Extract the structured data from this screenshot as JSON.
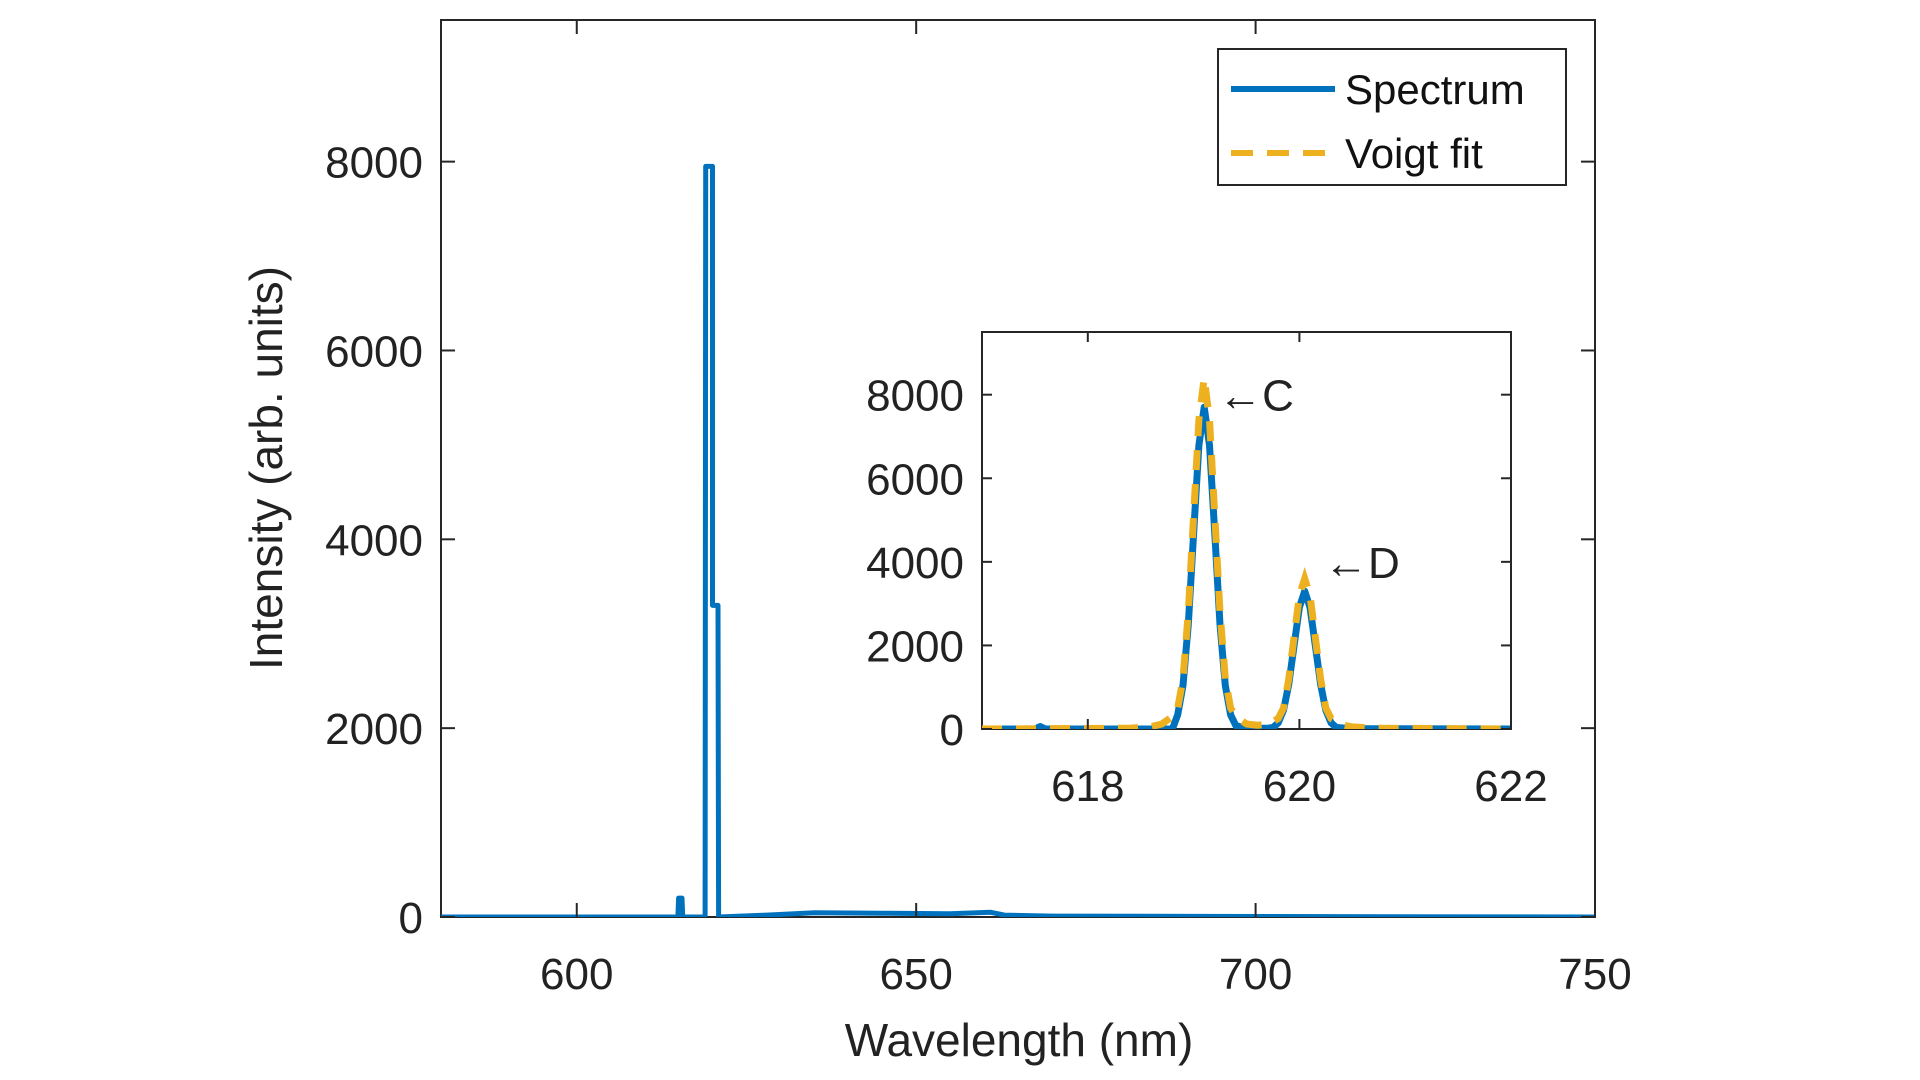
{
  "chart_data": {
    "type": "line",
    "colors": {
      "spectrum": "#0072BD",
      "fit": "#EDB120",
      "axes": "#262626"
    },
    "main": {
      "xlabel": "Wavelength (nm)",
      "ylabel": "Intensity (arb. units)",
      "xlim": [
        580,
        750
      ],
      "ylim": [
        0,
        9500
      ],
      "xticks": [
        600,
        650,
        700,
        750
      ],
      "yticks": [
        0,
        2000,
        4000,
        6000,
        8000
      ],
      "grid": false,
      "legend_placement": "top-right",
      "legend": [
        {
          "label": "Spectrum",
          "style": "solid"
        },
        {
          "label": "Voigt fit",
          "style": "dashed"
        }
      ],
      "spectrum": [
        [
          580,
          0
        ],
        [
          614.9,
          0
        ],
        [
          615.0,
          200
        ],
        [
          615.5,
          200
        ],
        [
          615.6,
          0
        ],
        [
          618.9,
          0
        ],
        [
          619.0,
          7950
        ],
        [
          620.0,
          7950
        ],
        [
          620.0,
          3300
        ],
        [
          620.8,
          3300
        ],
        [
          620.9,
          0
        ],
        [
          628,
          20
        ],
        [
          635,
          45
        ],
        [
          645,
          40
        ],
        [
          655,
          35
        ],
        [
          661,
          50
        ],
        [
          663,
          20
        ],
        [
          670,
          10
        ],
        [
          700,
          5
        ],
        [
          750,
          0
        ]
      ]
    },
    "inset": {
      "xlim": [
        617,
        622
      ],
      "ylim": [
        0,
        9500
      ],
      "xticks": [
        618,
        620,
        622
      ],
      "yticks": [
        0,
        2000,
        4000,
        6000,
        8000
      ],
      "annotations": [
        {
          "text": "←C",
          "x": 619.1,
          "y": 8000
        },
        {
          "text": "←D",
          "x": 620.1,
          "y": 4000
        }
      ],
      "spectrum": [
        [
          617,
          0
        ],
        [
          617.5,
          0
        ],
        [
          617.55,
          60
        ],
        [
          617.6,
          0
        ],
        [
          618.8,
          0
        ],
        [
          618.85,
          340
        ],
        [
          618.9,
          1042
        ],
        [
          618.95,
          2500
        ],
        [
          619.0,
          4670
        ],
        [
          619.05,
          6790
        ],
        [
          619.1,
          7700
        ],
        [
          619.15,
          6790
        ],
        [
          619.2,
          4670
        ],
        [
          619.25,
          2500
        ],
        [
          619.3,
          1042
        ],
        [
          619.35,
          340
        ],
        [
          619.4,
          80
        ],
        [
          619.5,
          20
        ],
        [
          619.7,
          20
        ],
        [
          619.75,
          37
        ],
        [
          619.8,
          145
        ],
        [
          619.85,
          447
        ],
        [
          619.9,
          1072
        ],
        [
          619.95,
          2000
        ],
        [
          620.0,
          2910
        ],
        [
          620.05,
          3300
        ],
        [
          620.1,
          2910
        ],
        [
          620.15,
          2000
        ],
        [
          620.2,
          1072
        ],
        [
          620.25,
          447
        ],
        [
          620.3,
          145
        ],
        [
          620.35,
          37
        ],
        [
          620.5,
          10
        ],
        [
          622,
          0
        ]
      ],
      "fit": [
        [
          617,
          0
        ],
        [
          618.4,
          20
        ],
        [
          618.6,
          60
        ],
        [
          618.7,
          120
        ],
        [
          618.8,
          300
        ],
        [
          618.85,
          500
        ],
        [
          618.9,
          1200
        ],
        [
          618.95,
          2800
        ],
        [
          619.0,
          5100
        ],
        [
          619.05,
          7400
        ],
        [
          619.1,
          8400
        ],
        [
          619.15,
          7400
        ],
        [
          619.2,
          5100
        ],
        [
          619.25,
          2800
        ],
        [
          619.3,
          1200
        ],
        [
          619.35,
          500
        ],
        [
          619.4,
          300
        ],
        [
          619.5,
          120
        ],
        [
          619.6,
          90
        ],
        [
          619.7,
          110
        ],
        [
          619.8,
          250
        ],
        [
          619.85,
          500
        ],
        [
          619.9,
          1200
        ],
        [
          619.95,
          2200
        ],
        [
          620.0,
          3200
        ],
        [
          620.05,
          3600
        ],
        [
          620.1,
          3200
        ],
        [
          620.15,
          2200
        ],
        [
          620.2,
          1200
        ],
        [
          620.25,
          500
        ],
        [
          620.3,
          250
        ],
        [
          620.4,
          100
        ],
        [
          620.5,
          50
        ],
        [
          620.7,
          20
        ],
        [
          622,
          0
        ]
      ]
    }
  }
}
